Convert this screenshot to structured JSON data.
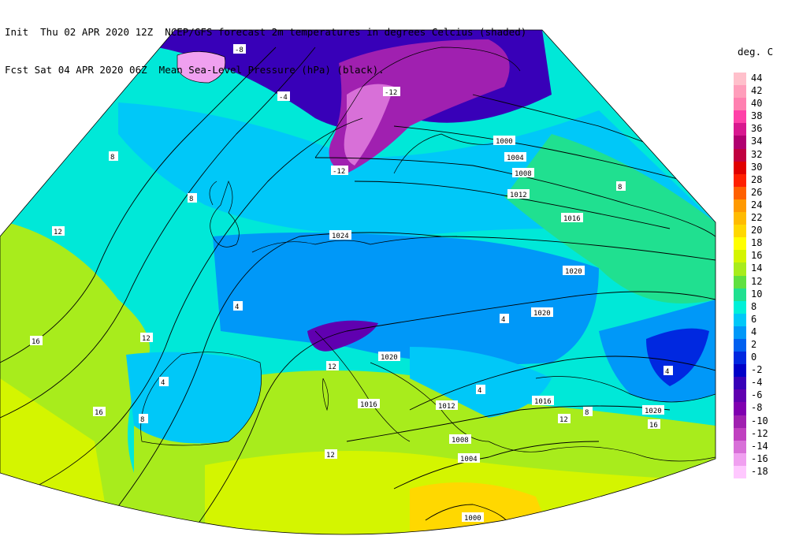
{
  "header": {
    "line1": "Init  Thu 02 APR 2020 12Z  NCEP/GFS forecast 2m temperatures in degrees Celcius (shaded)",
    "line2": "Fcst Sat 04 APR 2020 06Z  Mean Sea-Level Pressure (hPa) (black)."
  },
  "legend": {
    "unit": "deg. C",
    "entries": [
      {
        "label": "44",
        "color": "#ffc0cb"
      },
      {
        "label": "42",
        "color": "#ff9ebb"
      },
      {
        "label": "40",
        "color": "#ff80b0"
      },
      {
        "label": "38",
        "color": "#ff40a8"
      },
      {
        "label": "36",
        "color": "#d8188f"
      },
      {
        "label": "34",
        "color": "#b00070"
      },
      {
        "label": "32",
        "color": "#c00040"
      },
      {
        "label": "30",
        "color": "#e00000"
      },
      {
        "label": "28",
        "color": "#ff2000"
      },
      {
        "label": "26",
        "color": "#ff6000"
      },
      {
        "label": "24",
        "color": "#ff9900"
      },
      {
        "label": "22",
        "color": "#ffbb00"
      },
      {
        "label": "20",
        "color": "#ffd800"
      },
      {
        "label": "18",
        "color": "#ffff00"
      },
      {
        "label": "16",
        "color": "#d4f500"
      },
      {
        "label": "14",
        "color": "#a8ec1c"
      },
      {
        "label": "12",
        "color": "#60e040"
      },
      {
        "label": "10",
        "color": "#20e090"
      },
      {
        "label": "8",
        "color": "#00f0d8"
      },
      {
        "label": "6",
        "color": "#00c8f8"
      },
      {
        "label": "4",
        "color": "#0098f8"
      },
      {
        "label": "2",
        "color": "#0060f0"
      },
      {
        "label": "0",
        "color": "#0028e0"
      },
      {
        "label": "-2",
        "color": "#0000c8"
      },
      {
        "label": "-4",
        "color": "#3800b8"
      },
      {
        "label": "-6",
        "color": "#6000b0"
      },
      {
        "label": "-8",
        "color": "#8000b0"
      },
      {
        "label": "-10",
        "color": "#a020b0"
      },
      {
        "label": "-12",
        "color": "#c040c0"
      },
      {
        "label": "-14",
        "color": "#d870d8"
      },
      {
        "label": "-16",
        "color": "#f0a0f0"
      },
      {
        "label": "-18",
        "color": "#ffc8ff"
      }
    ]
  },
  "isobar_labels": [
    "1000",
    "1004",
    "1008",
    "1012",
    "1016",
    "1020",
    "1024",
    "1020",
    "1016",
    "1012",
    "1008",
    "1004",
    "1000",
    "1016",
    "1020",
    "1020"
  ],
  "temperature_labels": [
    "-8",
    "-4",
    "-12",
    "-12",
    "8",
    "12",
    "16",
    "16",
    "8",
    "4",
    "4",
    "8",
    "12",
    "12",
    "16",
    "8",
    "4",
    "4",
    "8",
    "12",
    "12",
    "4"
  ]
}
